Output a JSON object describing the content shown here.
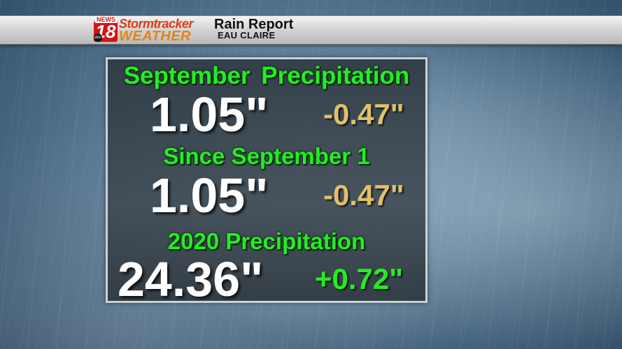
{
  "header": {
    "logo_news": "NEWS",
    "logo_number": "18",
    "logo_network": "abc",
    "logo_line1": "Stormtracker",
    "logo_line2": "WEATHER",
    "title": "Rain Report",
    "location": "EAU CLAIRE"
  },
  "sections": [
    {
      "heading": "September Precipitation",
      "value": "1.05\"",
      "departure": "-0.47\""
    },
    {
      "heading": "Since September 1",
      "value": "1.05\"",
      "departure": "-0.47\""
    },
    {
      "heading": "2020 Precipitation",
      "value": "24.36\"",
      "departure": "+0.72\""
    }
  ],
  "colors": {
    "heading": "#22ee22",
    "negative_departure": "#e0c06a",
    "positive_departure": "#22ee22",
    "value": "#ffffff"
  }
}
